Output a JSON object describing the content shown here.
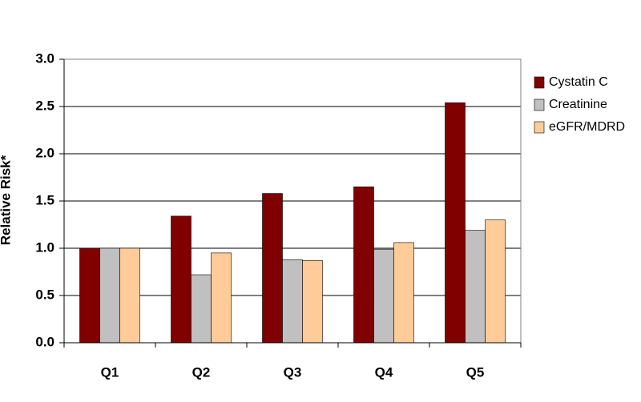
{
  "chart_data": {
    "type": "bar",
    "ylabel": "Relative Risk*",
    "categories": [
      "Q1",
      "Q2",
      "Q3",
      "Q4",
      "Q5"
    ],
    "series": [
      {
        "name": "Cystatin C",
        "color": "#800000",
        "values": [
          1.0,
          1.34,
          1.58,
          1.65,
          2.54
        ]
      },
      {
        "name": "Creatinine",
        "color": "#c0c0c0",
        "values": [
          1.0,
          0.72,
          0.88,
          0.99,
          1.19
        ]
      },
      {
        "name": "eGFR/MDRD",
        "color": "#ffcc99",
        "values": [
          1.0,
          0.95,
          0.87,
          1.06,
          1.3
        ]
      }
    ],
    "ylim": [
      0,
      3
    ],
    "yticks": [
      {
        "value": 0,
        "label": "0.0"
      },
      {
        "value": 0.5,
        "label": "0.5"
      },
      {
        "value": 1,
        "label": "1.0"
      },
      {
        "value": 1.5,
        "label": "1.5"
      },
      {
        "value": 2,
        "label": "2.0"
      },
      {
        "value": 2.5,
        "label": "2.5"
      },
      {
        "value": 3,
        "label": "3.0"
      }
    ],
    "grid": true,
    "legend": "right"
  }
}
